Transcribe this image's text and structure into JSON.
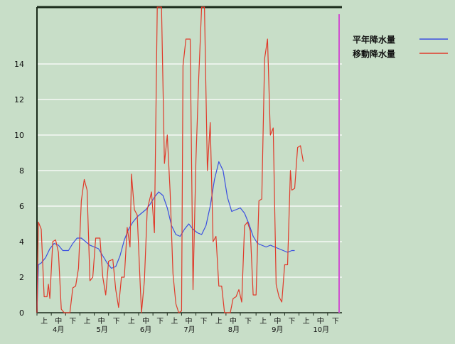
{
  "chart_data": {
    "type": "line",
    "ylim": [
      0,
      17.2
    ],
    "y_ticks": [
      0,
      2,
      4,
      6,
      8,
      10,
      12,
      14
    ],
    "grid": true,
    "legend_position": "top-right",
    "x_range_days": [
      0,
      213
    ],
    "period_labels": [
      "上",
      "中",
      "下"
    ],
    "months": [
      {
        "label": "4月",
        "start": 0
      },
      {
        "label": "5月",
        "start": 30
      },
      {
        "label": "6月",
        "start": 61
      },
      {
        "label": "7月",
        "start": 91
      },
      {
        "label": "8月",
        "start": 122
      },
      {
        "label": "9月",
        "start": 153
      },
      {
        "label": "10月",
        "start": 183
      }
    ],
    "end_marker_day": 213,
    "series": [
      {
        "name": "平年降水量",
        "color": "#3b4fe0",
        "points": [
          [
            0,
            0
          ],
          [
            1,
            2.7
          ],
          [
            3,
            2.8
          ],
          [
            6,
            3.1
          ],
          [
            9,
            3.6
          ],
          [
            12,
            3.9
          ],
          [
            15,
            3.8
          ],
          [
            18,
            3.5
          ],
          [
            22,
            3.5
          ],
          [
            25,
            3.9
          ],
          [
            28,
            4.2
          ],
          [
            31,
            4.2
          ],
          [
            34,
            4.0
          ],
          [
            37,
            3.8
          ],
          [
            40,
            3.7
          ],
          [
            43,
            3.6
          ],
          [
            46,
            3.2
          ],
          [
            49,
            2.8
          ],
          [
            52,
            2.5
          ],
          [
            55,
            2.6
          ],
          [
            58,
            3.2
          ],
          [
            61,
            4.1
          ],
          [
            64,
            4.7
          ],
          [
            67,
            5.1
          ],
          [
            70,
            5.4
          ],
          [
            73,
            5.6
          ],
          [
            76,
            5.8
          ],
          [
            79,
            6.1
          ],
          [
            82,
            6.5
          ],
          [
            85,
            6.8
          ],
          [
            88,
            6.6
          ],
          [
            91,
            5.9
          ],
          [
            94,
            4.9
          ],
          [
            97,
            4.4
          ],
          [
            100,
            4.3
          ],
          [
            103,
            4.7
          ],
          [
            106,
            5.0
          ],
          [
            109,
            4.7
          ],
          [
            112,
            4.5
          ],
          [
            115,
            4.4
          ],
          [
            118,
            4.9
          ],
          [
            121,
            6.0
          ],
          [
            124,
            7.5
          ],
          [
            127,
            8.5
          ],
          [
            130,
            8.0
          ],
          [
            133,
            6.5
          ],
          [
            136,
            5.7
          ],
          [
            139,
            5.8
          ],
          [
            142,
            5.9
          ],
          [
            145,
            5.6
          ],
          [
            148,
            5.0
          ],
          [
            151,
            4.3
          ],
          [
            154,
            3.9
          ],
          [
            157,
            3.8
          ],
          [
            160,
            3.7
          ],
          [
            163,
            3.8
          ],
          [
            166,
            3.7
          ],
          [
            169,
            3.6
          ],
          [
            172,
            3.5
          ],
          [
            175,
            3.4
          ],
          [
            178,
            3.5
          ],
          [
            180,
            3.5
          ]
        ]
      },
      {
        "name": "移動降水量",
        "color": "#e03a2a",
        "points": [
          [
            0,
            0
          ],
          [
            1,
            5.1
          ],
          [
            3,
            4.7
          ],
          [
            5,
            0.9
          ],
          [
            7,
            0.9
          ],
          [
            8,
            1.6
          ],
          [
            9,
            0.8
          ],
          [
            11,
            4.0
          ],
          [
            13,
            4.1
          ],
          [
            15,
            3.4
          ],
          [
            17,
            0.2
          ],
          [
            19,
            0.0
          ],
          [
            23,
            0.0
          ],
          [
            25,
            1.4
          ],
          [
            27,
            1.5
          ],
          [
            29,
            2.5
          ],
          [
            31,
            6.3
          ],
          [
            33,
            7.5
          ],
          [
            35,
            6.9
          ],
          [
            37,
            1.8
          ],
          [
            39,
            2.0
          ],
          [
            41,
            4.2
          ],
          [
            44,
            4.2
          ],
          [
            46,
            2.0
          ],
          [
            48,
            1.0
          ],
          [
            50,
            2.9
          ],
          [
            53,
            3.0
          ],
          [
            55,
            1.3
          ],
          [
            57,
            0.3
          ],
          [
            59,
            2.0
          ],
          [
            61,
            2.0
          ],
          [
            63,
            4.8
          ],
          [
            65,
            3.7
          ],
          [
            66,
            7.8
          ],
          [
            68,
            5.8
          ],
          [
            70,
            5.5
          ],
          [
            72,
            1.8
          ],
          [
            73,
            0.0
          ],
          [
            75,
            1.8
          ],
          [
            77,
            5.8
          ],
          [
            80,
            6.8
          ],
          [
            82,
            4.5
          ],
          [
            84,
            17.2
          ],
          [
            87,
            17.2
          ],
          [
            89,
            8.4
          ],
          [
            91,
            10.0
          ],
          [
            93,
            6.8
          ],
          [
            95,
            2.2
          ],
          [
            97,
            0.5
          ],
          [
            99,
            0.0
          ],
          [
            101,
            0.1
          ],
          [
            102,
            13.9
          ],
          [
            104,
            15.4
          ],
          [
            107,
            15.4
          ],
          [
            109,
            1.3
          ],
          [
            111,
            8.6
          ],
          [
            113,
            13.3
          ],
          [
            115,
            17.2
          ],
          [
            117,
            17.2
          ],
          [
            119,
            8.0
          ],
          [
            121,
            10.7
          ],
          [
            123,
            4.0
          ],
          [
            125,
            4.3
          ],
          [
            127,
            1.5
          ],
          [
            129,
            1.5
          ],
          [
            131,
            0.0
          ],
          [
            135,
            0.0
          ],
          [
            137,
            0.8
          ],
          [
            139,
            0.9
          ],
          [
            141,
            1.3
          ],
          [
            143,
            0.6
          ],
          [
            145,
            4.9
          ],
          [
            147,
            5.1
          ],
          [
            149,
            4.6
          ],
          [
            151,
            1.0
          ],
          [
            153,
            1.0
          ],
          [
            155,
            6.3
          ],
          [
            157,
            6.4
          ],
          [
            159,
            14.3
          ],
          [
            161,
            15.4
          ],
          [
            163,
            10.0
          ],
          [
            165,
            10.4
          ],
          [
            167,
            1.6
          ],
          [
            169,
            0.9
          ],
          [
            171,
            0.6
          ],
          [
            173,
            2.7
          ],
          [
            175,
            2.7
          ],
          [
            177,
            8.0
          ],
          [
            178,
            6.9
          ],
          [
            180,
            7.0
          ],
          [
            182,
            9.3
          ],
          [
            184,
            9.4
          ],
          [
            186,
            8.5
          ]
        ]
      }
    ]
  }
}
